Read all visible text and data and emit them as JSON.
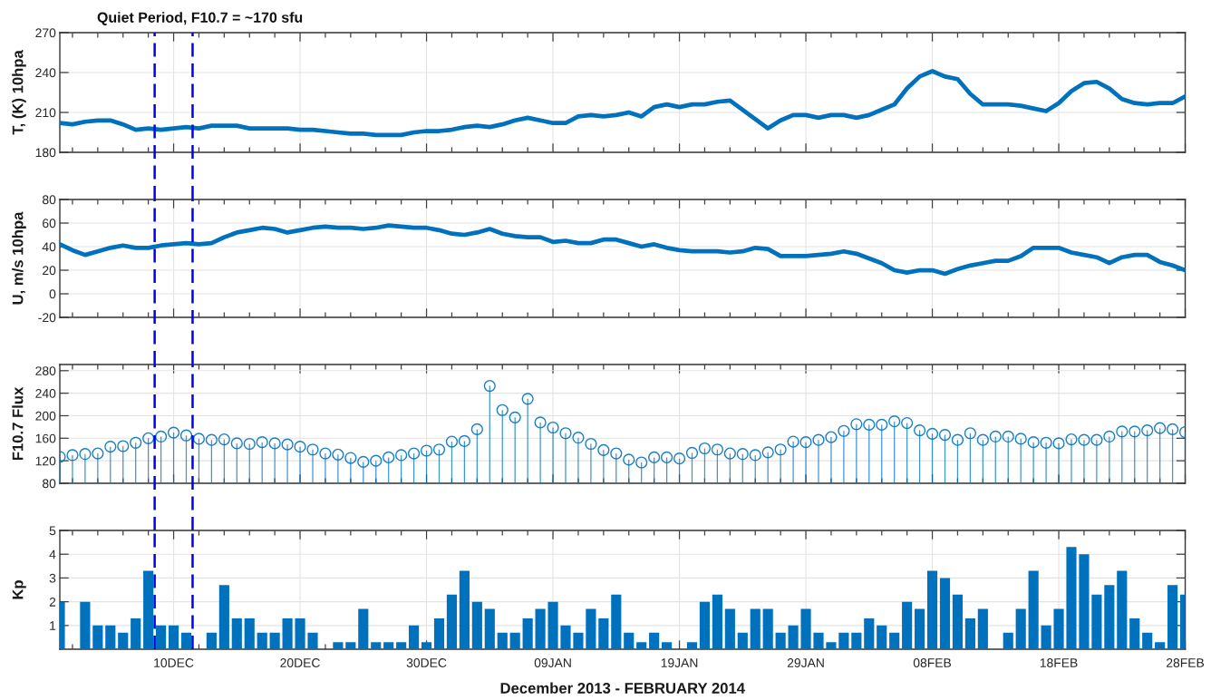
{
  "chart_data": [
    {
      "type": "line",
      "ylabel": "T, (K) 10hpa",
      "color": "#0072bd",
      "grid": true,
      "tick_labels": "y",
      "annotations": [
        "Quiet Period, F10.7 = ~170 sfu"
      ],
      "x": [
        "2013-12-01",
        "2013-12-02",
        "2013-12-03",
        "2013-12-04",
        "2013-12-05",
        "2013-12-06",
        "2013-12-07",
        "2013-12-08",
        "2013-12-09",
        "2013-12-10",
        "2013-12-11",
        "2013-12-12",
        "2013-12-13",
        "2013-12-14",
        "2013-12-15",
        "2013-12-16",
        "2013-12-17",
        "2013-12-18",
        "2013-12-19",
        "2013-12-20",
        "2013-12-21",
        "2013-12-22",
        "2013-12-23",
        "2013-12-24",
        "2013-12-25",
        "2013-12-26",
        "2013-12-27",
        "2013-12-28",
        "2013-12-29",
        "2013-12-30",
        "2013-12-31",
        "2014-01-01",
        "2014-01-02",
        "2014-01-03",
        "2014-01-04",
        "2014-01-05",
        "2014-01-06",
        "2014-01-07",
        "2014-01-08",
        "2014-01-09",
        "2014-01-10",
        "2014-01-11",
        "2014-01-12",
        "2014-01-13",
        "2014-01-14",
        "2014-01-15",
        "2014-01-16",
        "2014-01-17",
        "2014-01-18",
        "2014-01-19",
        "2014-01-20",
        "2014-01-21",
        "2014-01-22",
        "2014-01-23",
        "2014-01-24",
        "2014-01-25",
        "2014-01-26",
        "2014-01-27",
        "2014-01-28",
        "2014-01-29",
        "2014-01-30",
        "2014-01-31",
        "2014-02-01",
        "2014-02-02",
        "2014-02-03",
        "2014-02-04",
        "2014-02-05",
        "2014-02-06",
        "2014-02-07",
        "2014-02-08",
        "2014-02-09",
        "2014-02-10",
        "2014-02-11",
        "2014-02-12",
        "2014-02-13",
        "2014-02-14",
        "2014-02-15",
        "2014-02-16",
        "2014-02-17",
        "2014-02-18",
        "2014-02-19",
        "2014-02-20",
        "2014-02-21",
        "2014-02-22",
        "2014-02-23",
        "2014-02-24",
        "2014-02-25",
        "2014-02-26",
        "2014-02-27",
        "2014-02-28"
      ],
      "values": [
        202,
        201,
        203,
        204,
        204,
        201,
        197,
        198,
        197,
        198,
        199,
        198,
        200,
        200,
        200,
        198,
        198,
        198,
        198,
        197,
        197,
        196,
        195,
        194,
        194,
        193,
        193,
        193,
        195,
        196,
        196,
        197,
        199,
        200,
        199,
        201,
        204,
        206,
        204,
        202,
        202,
        207,
        208,
        207,
        208,
        210,
        207,
        214,
        216,
        214,
        216,
        216,
        218,
        219,
        212,
        205,
        198,
        204,
        208,
        208,
        206,
        208,
        208,
        206,
        208,
        212,
        216,
        228,
        237,
        241,
        237,
        235,
        224,
        216,
        216,
        216,
        215,
        213,
        211,
        217,
        226,
        232,
        233,
        228,
        220,
        217,
        216,
        217,
        217,
        222
      ],
      "xlim": [
        "2013-12-01",
        "2014-02-28"
      ],
      "ylim": [
        180,
        270
      ],
      "yticks": [
        180,
        210,
        240,
        270
      ],
      "ref_lines": [
        {
          "axis": "x",
          "value": "2013-12-08T12:00",
          "color": "#0000ee",
          "line_style": "dashed"
        },
        {
          "axis": "x",
          "value": "2013-12-11T12:00",
          "color": "#0000ee",
          "line_style": "dashed"
        }
      ]
    },
    {
      "type": "line",
      "ylabel": "U, m/s 10hpa",
      "color": "#0072bd",
      "grid": true,
      "tick_labels": "y",
      "x": [
        "2013-12-01",
        "2013-12-02",
        "2013-12-03",
        "2013-12-04",
        "2013-12-05",
        "2013-12-06",
        "2013-12-07",
        "2013-12-08",
        "2013-12-09",
        "2013-12-10",
        "2013-12-11",
        "2013-12-12",
        "2013-12-13",
        "2013-12-14",
        "2013-12-15",
        "2013-12-16",
        "2013-12-17",
        "2013-12-18",
        "2013-12-19",
        "2013-12-20",
        "2013-12-21",
        "2013-12-22",
        "2013-12-23",
        "2013-12-24",
        "2013-12-25",
        "2013-12-26",
        "2013-12-27",
        "2013-12-28",
        "2013-12-29",
        "2013-12-30",
        "2013-12-31",
        "2014-01-01",
        "2014-01-02",
        "2014-01-03",
        "2014-01-04",
        "2014-01-05",
        "2014-01-06",
        "2014-01-07",
        "2014-01-08",
        "2014-01-09",
        "2014-01-10",
        "2014-01-11",
        "2014-01-12",
        "2014-01-13",
        "2014-01-14",
        "2014-01-15",
        "2014-01-16",
        "2014-01-17",
        "2014-01-18",
        "2014-01-19",
        "2014-01-20",
        "2014-01-21",
        "2014-01-22",
        "2014-01-23",
        "2014-01-24",
        "2014-01-25",
        "2014-01-26",
        "2014-01-27",
        "2014-01-28",
        "2014-01-29",
        "2014-01-30",
        "2014-01-31",
        "2014-02-01",
        "2014-02-02",
        "2014-02-03",
        "2014-02-04",
        "2014-02-05",
        "2014-02-06",
        "2014-02-07",
        "2014-02-08",
        "2014-02-09",
        "2014-02-10",
        "2014-02-11",
        "2014-02-12",
        "2014-02-13",
        "2014-02-14",
        "2014-02-15",
        "2014-02-16",
        "2014-02-17",
        "2014-02-18",
        "2014-02-19",
        "2014-02-20",
        "2014-02-21",
        "2014-02-22",
        "2014-02-23",
        "2014-02-24",
        "2014-02-25",
        "2014-02-26",
        "2014-02-27",
        "2014-02-28"
      ],
      "values": [
        42,
        37,
        33,
        36,
        39,
        41,
        39,
        39,
        41,
        42,
        43,
        42,
        43,
        48,
        52,
        54,
        56,
        55,
        52,
        54,
        56,
        57,
        56,
        56,
        55,
        56,
        58,
        57,
        56,
        56,
        54,
        51,
        50,
        52,
        55,
        51,
        49,
        48,
        48,
        44,
        45,
        43,
        43,
        46,
        46,
        43,
        40,
        42,
        39,
        37,
        36,
        36,
        36,
        35,
        36,
        39,
        38,
        32,
        32,
        32,
        33,
        34,
        36,
        34,
        30,
        26,
        20,
        18,
        20,
        20,
        17,
        21,
        24,
        26,
        28,
        28,
        32,
        39,
        39,
        39,
        35,
        33,
        31,
        26,
        31,
        33,
        33,
        27,
        24,
        20
      ],
      "xlim": [
        "2013-12-01",
        "2014-02-28"
      ],
      "ylim": [
        -20,
        80
      ],
      "yticks": [
        -20,
        0,
        20,
        40,
        60,
        80
      ],
      "ref_lines": [
        {
          "axis": "x",
          "value": "2013-12-08T12:00",
          "color": "#0000ee",
          "line_style": "dashed"
        },
        {
          "axis": "x",
          "value": "2013-12-11T12:00",
          "color": "#0000ee",
          "line_style": "dashed"
        }
      ]
    },
    {
      "type": "lollipop",
      "ylabel": "F10.7 Flux",
      "color": "#0072bd",
      "marker": "circle",
      "grid": true,
      "tick_labels": "y",
      "x": [
        "2013-12-01",
        "2013-12-02",
        "2013-12-03",
        "2013-12-04",
        "2013-12-05",
        "2013-12-06",
        "2013-12-07",
        "2013-12-08",
        "2013-12-09",
        "2013-12-10",
        "2013-12-11",
        "2013-12-12",
        "2013-12-13",
        "2013-12-14",
        "2013-12-15",
        "2013-12-16",
        "2013-12-17",
        "2013-12-18",
        "2013-12-19",
        "2013-12-20",
        "2013-12-21",
        "2013-12-22",
        "2013-12-23",
        "2013-12-24",
        "2013-12-25",
        "2013-12-26",
        "2013-12-27",
        "2013-12-28",
        "2013-12-29",
        "2013-12-30",
        "2013-12-31",
        "2014-01-01",
        "2014-01-02",
        "2014-01-03",
        "2014-01-04",
        "2014-01-05",
        "2014-01-06",
        "2014-01-07",
        "2014-01-08",
        "2014-01-09",
        "2014-01-10",
        "2014-01-11",
        "2014-01-12",
        "2014-01-13",
        "2014-01-14",
        "2014-01-15",
        "2014-01-16",
        "2014-01-17",
        "2014-01-18",
        "2014-01-19",
        "2014-01-20",
        "2014-01-21",
        "2014-01-22",
        "2014-01-23",
        "2014-01-24",
        "2014-01-25",
        "2014-01-26",
        "2014-01-27",
        "2014-01-28",
        "2014-01-29",
        "2014-01-30",
        "2014-01-31",
        "2014-02-01",
        "2014-02-02",
        "2014-02-03",
        "2014-02-04",
        "2014-02-05",
        "2014-02-06",
        "2014-02-07",
        "2014-02-08",
        "2014-02-09",
        "2014-02-10",
        "2014-02-11",
        "2014-02-12",
        "2014-02-13",
        "2014-02-14",
        "2014-02-15",
        "2014-02-16",
        "2014-02-17",
        "2014-02-18",
        "2014-02-19",
        "2014-02-20",
        "2014-02-21",
        "2014-02-22",
        "2014-02-23",
        "2014-02-24",
        "2014-02-25",
        "2014-02-26",
        "2014-02-27",
        "2014-02-28"
      ],
      "values": [
        127,
        130,
        132,
        133,
        145,
        146,
        152,
        160,
        163,
        170,
        165,
        159,
        157,
        158,
        151,
        150,
        153,
        151,
        149,
        145,
        140,
        133,
        131,
        125,
        118,
        120,
        126,
        130,
        133,
        138,
        140,
        154,
        155,
        176,
        253,
        210,
        197,
        230,
        188,
        179,
        169,
        161,
        150,
        139,
        133,
        122,
        117,
        126,
        126,
        124,
        134,
        142,
        140,
        133,
        132,
        130,
        135,
        140,
        154,
        153,
        157,
        162,
        173,
        185,
        184,
        184,
        190,
        187,
        174,
        168,
        166,
        157,
        169,
        157,
        163,
        163,
        159,
        153,
        152,
        151,
        158,
        157,
        157,
        163,
        172,
        172,
        174,
        178,
        176,
        171
      ],
      "xlim": [
        "2013-12-01",
        "2014-02-28"
      ],
      "ylim": [
        80,
        291
      ],
      "yticks": [
        80,
        120,
        160,
        200,
        240,
        280
      ],
      "ref_lines": [
        {
          "axis": "x",
          "value": "2013-12-08T12:00",
          "color": "#0000ee",
          "line_style": "dashed"
        },
        {
          "axis": "x",
          "value": "2013-12-11T12:00",
          "color": "#0000ee",
          "line_style": "dashed"
        }
      ]
    },
    {
      "type": "bar",
      "ylabel": "Kp",
      "xlabel": "December 2013 - FEBRUARY 2014",
      "color": "#0072bd",
      "grid": true,
      "x": [
        "2013-12-01",
        "2013-12-02",
        "2013-12-03",
        "2013-12-04",
        "2013-12-05",
        "2013-12-06",
        "2013-12-07",
        "2013-12-08",
        "2013-12-09",
        "2013-12-10",
        "2013-12-11",
        "2013-12-12",
        "2013-12-13",
        "2013-12-14",
        "2013-12-15",
        "2013-12-16",
        "2013-12-17",
        "2013-12-18",
        "2013-12-19",
        "2013-12-20",
        "2013-12-21",
        "2013-12-22",
        "2013-12-23",
        "2013-12-24",
        "2013-12-25",
        "2013-12-26",
        "2013-12-27",
        "2013-12-28",
        "2013-12-29",
        "2013-12-30",
        "2013-12-31",
        "2014-01-01",
        "2014-01-02",
        "2014-01-03",
        "2014-01-04",
        "2014-01-05",
        "2014-01-06",
        "2014-01-07",
        "2014-01-08",
        "2014-01-09",
        "2014-01-10",
        "2014-01-11",
        "2014-01-12",
        "2014-01-13",
        "2014-01-14",
        "2014-01-15",
        "2014-01-16",
        "2014-01-17",
        "2014-01-18",
        "2014-01-19",
        "2014-01-20",
        "2014-01-21",
        "2014-01-22",
        "2014-01-23",
        "2014-01-24",
        "2014-01-25",
        "2014-01-26",
        "2014-01-27",
        "2014-01-28",
        "2014-01-29",
        "2014-01-30",
        "2014-01-31",
        "2014-02-01",
        "2014-02-02",
        "2014-02-03",
        "2014-02-04",
        "2014-02-05",
        "2014-02-06",
        "2014-02-07",
        "2014-02-08",
        "2014-02-09",
        "2014-02-10",
        "2014-02-11",
        "2014-02-12",
        "2014-02-13",
        "2014-02-14",
        "2014-02-15",
        "2014-02-16",
        "2014-02-17",
        "2014-02-18",
        "2014-02-19",
        "2014-02-20",
        "2014-02-21",
        "2014-02-22",
        "2014-02-23",
        "2014-02-24",
        "2014-02-25",
        "2014-02-26",
        "2014-02-27",
        "2014-02-28"
      ],
      "values": [
        2,
        0,
        2,
        1,
        1,
        0.7,
        1.3,
        3.3,
        1,
        1,
        0.7,
        0,
        0.7,
        2.7,
        1.3,
        1.3,
        0.7,
        0.7,
        1.3,
        1.3,
        0.7,
        0,
        0.3,
        0.3,
        1.7,
        0.3,
        0.3,
        0.3,
        1,
        0.3,
        1.3,
        2.3,
        3.3,
        2,
        1.7,
        0.7,
        0.7,
        1.3,
        1.7,
        2,
        1,
        0.7,
        1.7,
        1.3,
        2.3,
        0.7,
        0.3,
        0.7,
        0.3,
        0,
        0.3,
        2,
        2.3,
        1.7,
        0.7,
        1.7,
        1.7,
        0.7,
        1,
        1.7,
        0.7,
        0.3,
        0.7,
        0.7,
        1.3,
        1,
        0.7,
        2,
        1.7,
        3.3,
        3,
        2.3,
        1.3,
        1.7,
        0,
        0.7,
        1.7,
        3.3,
        1,
        1.7,
        4.3,
        4,
        2.3,
        2.7,
        3.3,
        1.3,
        0.7,
        0.3,
        2.7,
        2.3
      ],
      "xlim": [
        "2013-12-01",
        "2014-02-28"
      ],
      "xticks": [
        {
          "value": "2013-12-02",
          "label": null
        },
        {
          "value": "2013-12-04",
          "label": null
        },
        {
          "value": "2013-12-06",
          "label": null
        },
        {
          "value": "2013-12-08",
          "label": null
        },
        {
          "value": "2013-12-10",
          "label": "10DEC"
        },
        {
          "value": "2013-12-12",
          "label": null
        },
        {
          "value": "2013-12-14",
          "label": null
        },
        {
          "value": "2013-12-16",
          "label": null
        },
        {
          "value": "2013-12-18",
          "label": null
        },
        {
          "value": "2013-12-20",
          "label": "20DEC"
        },
        {
          "value": "2013-12-22",
          "label": null
        },
        {
          "value": "2013-12-24",
          "label": null
        },
        {
          "value": "2013-12-26",
          "label": null
        },
        {
          "value": "2013-12-28",
          "label": null
        },
        {
          "value": "2013-12-30",
          "label": "30DEC"
        },
        {
          "value": "2014-01-01",
          "label": null
        },
        {
          "value": "2014-01-03",
          "label": null
        },
        {
          "value": "2014-01-05",
          "label": null
        },
        {
          "value": "2014-01-07",
          "label": null
        },
        {
          "value": "2014-01-09",
          "label": "09JAN"
        },
        {
          "value": "2014-01-11",
          "label": null
        },
        {
          "value": "2014-01-13",
          "label": null
        },
        {
          "value": "2014-01-15",
          "label": null
        },
        {
          "value": "2014-01-17",
          "label": null
        },
        {
          "value": "2014-01-19",
          "label": "19JAN"
        },
        {
          "value": "2014-01-21",
          "label": null
        },
        {
          "value": "2014-01-23",
          "label": null
        },
        {
          "value": "2014-01-25",
          "label": null
        },
        {
          "value": "2014-01-27",
          "label": null
        },
        {
          "value": "2014-01-29",
          "label": "29JAN"
        },
        {
          "value": "2014-01-31",
          "label": null
        },
        {
          "value": "2014-02-02",
          "label": null
        },
        {
          "value": "2014-02-04",
          "label": null
        },
        {
          "value": "2014-02-06",
          "label": null
        },
        {
          "value": "2014-02-08",
          "label": "08FEB"
        },
        {
          "value": "2014-02-10",
          "label": null
        },
        {
          "value": "2014-02-12",
          "label": null
        },
        {
          "value": "2014-02-14",
          "label": null
        },
        {
          "value": "2014-02-16",
          "label": null
        },
        {
          "value": "2014-02-18",
          "label": "18FEB"
        },
        {
          "value": "2014-02-20",
          "label": null
        },
        {
          "value": "2014-02-22",
          "label": null
        },
        {
          "value": "2014-02-24",
          "label": null
        },
        {
          "value": "2014-02-26",
          "label": null
        },
        {
          "value": "2014-02-28",
          "label": "28FEB"
        }
      ],
      "ylim": [
        0,
        5
      ],
      "yticks": [
        1,
        2,
        3,
        4,
        5
      ],
      "ref_lines": [
        {
          "axis": "x",
          "value": "2013-12-08T12:00",
          "color": "#0000ee",
          "line_style": "dashed"
        },
        {
          "axis": "x",
          "value": "2013-12-11T12:00",
          "color": "#0000ee",
          "line_style": "dashed"
        }
      ]
    }
  ]
}
